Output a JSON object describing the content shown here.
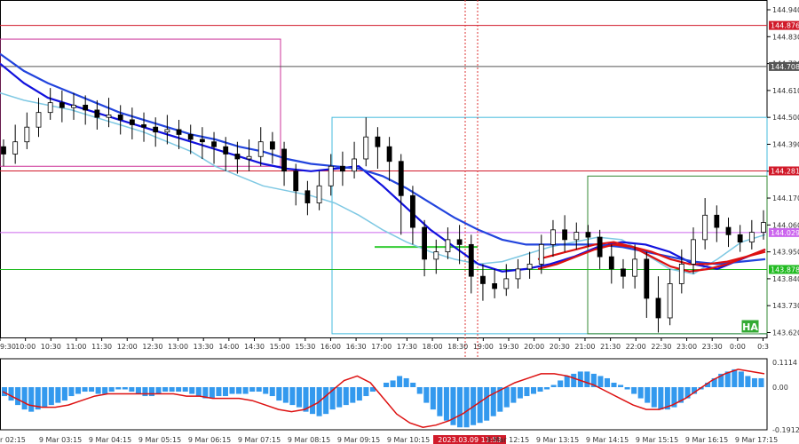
{
  "chart_data": [
    {
      "type": "candlestick",
      "title": "",
      "ylim": [
        143.6,
        144.98
      ],
      "y_ticks": [
        "144.940",
        "144.830",
        "144.720",
        "144.610",
        "144.500",
        "144.390",
        "144.280",
        "144.170",
        "144.060",
        "143.950",
        "143.840",
        "143.730",
        "143.620"
      ],
      "x_ticks": [
        "9:30",
        "10:00",
        "10:30",
        "11:00",
        "11:30",
        "12:00",
        "12:30",
        "13:00",
        "13:30",
        "14:00",
        "14:30",
        "15:00",
        "15:30",
        "16:00",
        "16:30",
        "17:00",
        "17:30",
        "18:00",
        "18:30",
        "19:00",
        "19:30",
        "20:00",
        "20:30",
        "21:00",
        "21:30",
        "22:00",
        "22:30",
        "23:00",
        "23:30",
        "0:00",
        "0:3"
      ],
      "price_lines": [
        {
          "value": 144.876,
          "label": "144.876",
          "color": "#d11a2a"
        },
        {
          "value": 144.708,
          "label": "144.708",
          "color": "#555555"
        },
        {
          "value": 144.281,
          "label": "144.281",
          "color": "#d11a2a"
        },
        {
          "value": 144.029,
          "label": "144.029",
          "color": "#cc66ee"
        },
        {
          "value": 143.878,
          "label": "143.878",
          "color": "#22bb22"
        }
      ],
      "candles": [
        [
          144.38,
          144.35,
          144.41,
          144.3
        ],
        [
          144.35,
          144.4,
          144.47,
          144.31
        ],
        [
          144.4,
          144.46,
          144.52,
          144.37
        ],
        [
          144.46,
          144.52,
          144.58,
          144.42
        ],
        [
          144.52,
          144.56,
          144.62,
          144.49
        ],
        [
          144.56,
          144.54,
          144.61,
          144.48
        ],
        [
          144.54,
          144.55,
          144.6,
          144.49
        ],
        [
          144.55,
          144.53,
          144.59,
          144.47
        ],
        [
          144.53,
          144.5,
          144.57,
          144.45
        ],
        [
          144.5,
          144.51,
          144.58,
          144.46
        ],
        [
          144.51,
          144.49,
          144.55,
          144.43
        ],
        [
          144.49,
          144.47,
          144.54,
          144.41
        ],
        [
          144.47,
          144.46,
          144.52,
          144.4
        ],
        [
          144.46,
          144.44,
          144.5,
          144.38
        ],
        [
          144.44,
          144.45,
          144.51,
          144.39
        ],
        [
          144.45,
          144.43,
          144.49,
          144.37
        ],
        [
          144.43,
          144.41,
          144.47,
          144.35
        ],
        [
          144.41,
          144.4,
          144.46,
          144.33
        ],
        [
          144.4,
          144.38,
          144.44,
          144.31
        ],
        [
          144.38,
          144.35,
          144.42,
          144.28
        ],
        [
          144.35,
          144.33,
          144.4,
          144.27
        ],
        [
          144.33,
          144.34,
          144.41,
          144.28
        ],
        [
          144.34,
          144.4,
          144.46,
          144.3
        ],
        [
          144.4,
          144.37,
          144.44,
          144.31
        ],
        [
          144.37,
          144.28,
          144.4,
          144.22
        ],
        [
          144.28,
          144.2,
          144.31,
          144.14
        ],
        [
          144.2,
          144.15,
          144.24,
          144.1
        ],
        [
          144.15,
          144.22,
          144.28,
          144.12
        ],
        [
          144.22,
          144.3,
          144.35,
          144.18
        ],
        [
          144.3,
          144.28,
          144.36,
          144.22
        ],
        [
          144.28,
          144.33,
          144.4,
          144.25
        ],
        [
          144.33,
          144.42,
          144.5,
          144.3
        ],
        [
          144.42,
          144.38,
          144.46,
          144.29
        ],
        [
          144.38,
          144.32,
          144.42,
          144.24
        ],
        [
          144.32,
          144.18,
          144.35,
          144.02
        ],
        [
          144.18,
          144.05,
          144.22,
          143.98
        ],
        [
          144.05,
          143.92,
          144.08,
          143.85
        ],
        [
          143.92,
          143.95,
          144.0,
          143.86
        ],
        [
          143.95,
          144.0,
          144.05,
          143.92
        ],
        [
          144.0,
          143.98,
          144.06,
          143.9
        ],
        [
          143.98,
          143.85,
          144.02,
          143.78
        ],
        [
          143.85,
          143.82,
          143.9,
          143.75
        ],
        [
          143.82,
          143.8,
          143.88,
          143.76
        ],
        [
          143.8,
          143.84,
          143.9,
          143.77
        ],
        [
          143.84,
          143.88,
          143.92,
          143.8
        ],
        [
          143.88,
          143.9,
          143.95,
          143.84
        ],
        [
          143.9,
          143.98,
          144.02,
          143.86
        ],
        [
          143.98,
          144.04,
          144.08,
          143.93
        ],
        [
          144.04,
          144.0,
          144.1,
          143.95
        ],
        [
          144.0,
          144.03,
          144.07,
          143.96
        ],
        [
          144.03,
          144.01,
          144.06,
          143.97
        ],
        [
          144.01,
          143.93,
          144.04,
          143.88
        ],
        [
          143.93,
          143.88,
          143.98,
          143.82
        ],
        [
          143.88,
          143.85,
          143.92,
          143.8
        ],
        [
          143.85,
          143.92,
          143.98,
          143.8
        ],
        [
          143.92,
          143.76,
          143.95,
          143.68
        ],
        [
          143.76,
          143.68,
          143.85,
          143.62
        ],
        [
          143.68,
          143.82,
          143.88,
          143.65
        ],
        [
          143.82,
          143.9,
          143.96,
          143.78
        ],
        [
          143.9,
          144.0,
          144.05,
          143.86
        ],
        [
          144.0,
          144.1,
          144.17,
          143.96
        ],
        [
          144.1,
          144.05,
          144.14,
          143.99
        ],
        [
          144.05,
          144.02,
          144.09,
          143.97
        ],
        [
          144.02,
          143.99,
          144.06,
          143.95
        ],
        [
          143.99,
          144.03,
          144.08,
          143.96
        ],
        [
          144.03,
          144.07,
          144.12,
          144.0
        ]
      ],
      "series": [
        {
          "values": [
            144.6,
            144.57,
            144.55,
            144.53,
            144.5,
            144.47,
            144.44,
            144.4,
            144.36,
            144.3,
            144.26,
            144.22,
            144.2,
            144.18,
            144.15,
            144.1,
            144.04,
            143.99,
            143.95,
            143.92,
            143.9,
            143.91,
            143.94,
            143.97,
            143.99,
            144.01,
            144.0,
            143.94,
            143.88,
            143.86,
            143.92,
            143.99,
            144.02
          ],
          "color": "#7ec8e3"
        },
        {
          "values": [
            144.72,
            144.64,
            144.58,
            144.55,
            144.52,
            144.49,
            144.46,
            144.43,
            144.4,
            144.37,
            144.34,
            144.31,
            144.29,
            144.28,
            144.29,
            144.3,
            144.22,
            144.13,
            144.04,
            143.97,
            143.9,
            143.87,
            143.88,
            143.9,
            143.93,
            143.97,
            143.99,
            143.98,
            143.95,
            143.9,
            143.88,
            143.92,
            143.96
          ],
          "color": "#1111dd"
        },
        {
          "values": [
            144.76,
            144.69,
            144.64,
            144.6,
            144.56,
            144.52,
            144.49,
            144.46,
            144.43,
            144.41,
            144.38,
            144.36,
            144.33,
            144.31,
            144.3,
            144.29,
            144.26,
            144.21,
            144.15,
            144.09,
            144.04,
            144.0,
            143.98,
            143.98,
            143.98,
            143.98,
            143.97,
            143.95,
            143.93,
            143.91,
            143.9,
            143.91,
            143.92
          ],
          "color": "#2244dd"
        },
        {
          "values": [
            143.88,
            143.9,
            143.93,
            143.96,
            143.98,
            143.97,
            143.93,
            143.89,
            143.87,
            143.88,
            143.9,
            143.93,
            143.96
          ],
          "color": "#dd1111"
        },
        {
          "values": [
            143.92,
            143.94,
            143.96,
            143.98,
            143.99,
            143.97,
            143.95,
            143.92,
            143.9,
            143.9,
            143.91,
            143.93,
            143.95
          ],
          "color": "#dd1111"
        }
      ],
      "annotations": [
        {
          "type": "rectangle",
          "y_range": [
            144.3,
            144.82
          ],
          "color": "#cc3399"
        },
        {
          "type": "rectangle",
          "y_range": [
            143.615,
            144.5
          ],
          "color": "#44bbdd"
        },
        {
          "type": "rectangle",
          "y_range": [
            143.615,
            144.26
          ],
          "color": "#338833"
        },
        {
          "type": "segment",
          "value": 143.97,
          "color": "#33cc33"
        }
      ],
      "vertical_lines": [
        "#dd3333",
        "#dd3333"
      ],
      "marker": "HA",
      "time_label": "2023.03.09 11:53"
    },
    {
      "type": "histogram",
      "y_ticks": [
        "0.1114",
        "0.00",
        "-0.1912"
      ],
      "bars": [
        -0.04,
        -0.06,
        -0.08,
        -0.1,
        -0.11,
        -0.1,
        -0.09,
        -0.08,
        -0.07,
        -0.06,
        -0.04,
        -0.03,
        -0.02,
        -0.02,
        -0.03,
        -0.03,
        -0.02,
        -0.01,
        -0.01,
        -0.02,
        -0.03,
        -0.04,
        -0.04,
        -0.03,
        -0.02,
        -0.02,
        -0.02,
        -0.02,
        -0.03,
        -0.04,
        -0.05,
        -0.05,
        -0.04,
        -0.04,
        -0.03,
        -0.03,
        -0.03,
        -0.02,
        -0.02,
        -0.03,
        -0.04,
        -0.06,
        -0.07,
        -0.08,
        -0.09,
        -0.11,
        -0.12,
        -0.13,
        -0.12,
        -0.1,
        -0.09,
        -0.08,
        -0.07,
        -0.06,
        -0.04,
        -0.02,
        0.0,
        0.02,
        0.03,
        0.05,
        0.04,
        0.02,
        -0.03,
        -0.07,
        -0.1,
        -0.13,
        -0.15,
        -0.17,
        -0.18,
        -0.18,
        -0.17,
        -0.16,
        -0.15,
        -0.13,
        -0.11,
        -0.09,
        -0.07,
        -0.05,
        -0.04,
        -0.03,
        -0.02,
        -0.01,
        0.01,
        0.03,
        0.05,
        0.06,
        0.07,
        0.07,
        0.06,
        0.05,
        0.04,
        0.02,
        0.01,
        -0.01,
        -0.03,
        -0.05,
        -0.07,
        -0.09,
        -0.1,
        -0.1,
        -0.09,
        -0.07,
        -0.05,
        -0.03,
        -0.01,
        0.02,
        0.04,
        0.06,
        0.07,
        0.08,
        0.07,
        0.05,
        0.04,
        0.04
      ],
      "signal": [
        -0.02,
        -0.05,
        -0.08,
        -0.09,
        -0.09,
        -0.08,
        -0.06,
        -0.04,
        -0.03,
        -0.03,
        -0.03,
        -0.03,
        -0.03,
        -0.03,
        -0.04,
        -0.04,
        -0.05,
        -0.05,
        -0.05,
        -0.06,
        -0.08,
        -0.1,
        -0.11,
        -0.1,
        -0.07,
        -0.02,
        0.03,
        0.05,
        0.02,
        -0.05,
        -0.12,
        -0.16,
        -0.18,
        -0.17,
        -0.15,
        -0.12,
        -0.08,
        -0.04,
        -0.01,
        0.02,
        0.04,
        0.06,
        0.06,
        0.05,
        0.03,
        0.01,
        -0.02,
        -0.05,
        -0.08,
        -0.1,
        -0.1,
        -0.08,
        -0.05,
        -0.01,
        0.03,
        0.06,
        0.08,
        0.07,
        0.06
      ],
      "signal_color": "#dd1111",
      "bar_color": "#3399ee"
    }
  ],
  "x_ticks_lower": [
    "r 02:15",
    "9 Mar 03:15",
    "9 Mar 04:15",
    "9 Mar 05:15",
    "9 Mar 06:15",
    "9 Mar 07:15",
    "9 Mar 08:15",
    "9 Mar 09:15",
    "9 Mar 10:15",
    "2023.03.09 11:53",
    "9 Mar 12:15",
    "9 Mar 13:15",
    "9 Mar 14:15",
    "9 Mar 15:15",
    "9 Mar 16:15",
    "9 Mar 17:15"
  ]
}
